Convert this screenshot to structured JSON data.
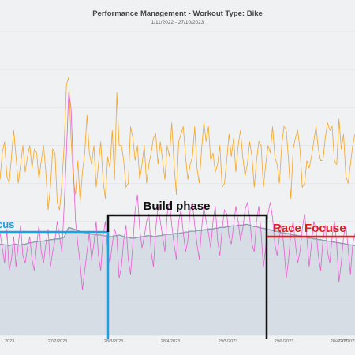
{
  "chart_data": {
    "type": "line",
    "title": "Performance Management - Workout Type: Bike",
    "subtitle": "1/11/2022 - 27/10/2023",
    "x_ticks": [
      "2023",
      "27/2/2023",
      "28/3/2023",
      "28/4/2023",
      "29/5/2023",
      "29/6/2023",
      "28/4/2023",
      "22/7/2023"
    ],
    "grid": true,
    "series": [
      {
        "color": "#f5a623",
        "values": [
          205,
          240,
          255,
          210,
          200,
          235,
          270,
          235,
          200,
          225,
          250,
          215,
          235,
          250,
          220,
          245,
          240,
          205,
          230,
          250,
          215,
          165,
          195,
          245,
          240,
          175,
          165,
          200,
          250,
          330,
          340,
          260,
          205,
          185,
          230,
          175,
          215,
          240,
          290,
          240,
          225,
          250,
          195,
          225,
          255,
          205,
          180,
          235,
          220,
          270,
          205,
          320,
          250,
          250,
          230,
          195,
          200,
          275,
          260,
          230,
          250,
          205,
          225,
          250,
          200,
          225,
          240,
          260,
          265,
          225,
          255,
          230,
          205,
          250,
          235,
          280,
          225,
          185,
          255,
          265,
          275,
          235,
          205,
          225,
          235,
          275,
          220,
          200,
          245,
          280,
          255,
          275,
          230,
          240,
          215,
          225,
          250,
          195,
          200,
          230,
          265,
          235,
          260,
          215,
          250,
          270,
          235,
          210,
          225,
          255,
          235,
          195,
          230,
          255,
          250,
          195,
          225,
          250,
          240,
          275,
          235,
          225,
          200,
          250,
          275,
          270,
          230,
          180,
          245,
          260,
          270,
          245,
          195,
          200,
          230,
          220,
          235,
          255,
          275,
          245,
          230,
          230,
          260,
          280,
          270,
          275,
          230,
          225,
          285,
          245,
          265,
          210,
          200,
          225,
          250,
          265
        ]
      },
      {
        "color": "#e85fcf",
        "values": [
          135,
          115,
          95,
          140,
          85,
          100,
          130,
          90,
          120,
          145,
          105,
          95,
          115,
          130,
          100,
          85,
          120,
          145,
          110,
          95,
          120,
          140,
          90,
          110,
          125,
          150,
          130,
          110,
          170,
          240,
          320,
          300,
          220,
          150,
          120,
          95,
          60,
          85,
          110,
          135,
          100,
          120,
          150,
          105,
          85,
          130,
          150,
          110,
          95,
          120,
          140,
          130,
          75,
          90,
          125,
          145,
          100,
          80,
          120,
          165,
          185,
          140,
          115,
          130,
          150,
          160,
          110,
          90,
          140,
          170,
          150,
          130,
          110,
          160,
          175,
          145,
          120,
          100,
          150,
          165,
          135,
          110,
          125,
          165,
          175,
          145,
          120,
          100,
          140,
          170,
          150,
          135,
          115,
          150,
          170,
          125,
          105,
          140,
          165,
          160,
          130,
          120,
          145,
          170,
          150,
          125,
          140,
          165,
          175,
          155,
          120,
          110,
          150,
          170,
          135,
          90,
          115,
          160,
          175,
          155,
          120,
          105,
          130,
          145,
          115,
          75,
          100,
          135,
          150,
          120,
          95,
          110,
          140,
          160,
          130,
          90,
          120,
          150,
          140,
          105,
          85,
          125,
          145,
          110,
          95,
          130,
          150,
          120,
          70,
          95,
          130,
          145,
          115,
          80,
          120,
          135
        ]
      },
      {
        "color": "#8a9ab0",
        "values": [
          120,
          120,
          119,
          119,
          118,
          119,
          120,
          120,
          119,
          119,
          120,
          120,
          121,
          122,
          122,
          123,
          123,
          124,
          124,
          124,
          125,
          125,
          126,
          126,
          127,
          127,
          127,
          128,
          129,
          136,
          142,
          141,
          140,
          139,
          138,
          137,
          136,
          135,
          135,
          134,
          133,
          133,
          132,
          132,
          132,
          131,
          131,
          131,
          130,
          130,
          131,
          131,
          132,
          131,
          130,
          129,
          129,
          128,
          128,
          128,
          129,
          129,
          130,
          130,
          131,
          131,
          131,
          130,
          130,
          131,
          131,
          132,
          132,
          133,
          133,
          133,
          134,
          134,
          134,
          135,
          135,
          136,
          136,
          137,
          137,
          137,
          138,
          138,
          138,
          139,
          139,
          140,
          140,
          140,
          141,
          141,
          142,
          142,
          142,
          143,
          143,
          144,
          144,
          144,
          145,
          145,
          145,
          146,
          146,
          145,
          144,
          143,
          143,
          142,
          141,
          141,
          140,
          139,
          139,
          138,
          137,
          137,
          136,
          135,
          135,
          134,
          134,
          133,
          132,
          132,
          131,
          131,
          130,
          130,
          129,
          128,
          128,
          127,
          127,
          126,
          126,
          125,
          125,
          124,
          124,
          123,
          123,
          122,
          122,
          121,
          121,
          120,
          120,
          119,
          119,
          118
        ]
      }
    ],
    "y_max": 400,
    "phases": [
      {
        "label": "cus",
        "color": "#1ba1e2"
      },
      {
        "label": "Build phase",
        "color": "#111111"
      },
      {
        "label": "Race Focuse",
        "color": "#e02020"
      }
    ]
  }
}
